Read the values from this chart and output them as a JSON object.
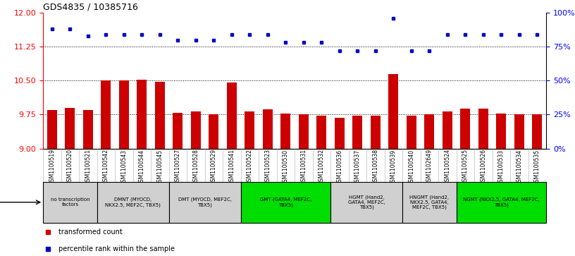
{
  "title": "GDS4835 / 10385716",
  "samples": [
    "GSM1100519",
    "GSM1100520",
    "GSM1100521",
    "GSM1100542",
    "GSM1100543",
    "GSM1100544",
    "GSM1100545",
    "GSM1100527",
    "GSM1100528",
    "GSM1100529",
    "GSM1100541",
    "GSM1100522",
    "GSM1100523",
    "GSM1100530",
    "GSM1100531",
    "GSM1100532",
    "GSM1100536",
    "GSM1100537",
    "GSM1100538",
    "GSM1100539",
    "GSM1100540",
    "GSM1102649",
    "GSM1100524",
    "GSM1100525",
    "GSM1100526",
    "GSM1100533",
    "GSM1100534",
    "GSM1100535"
  ],
  "bar_values": [
    9.85,
    9.9,
    9.85,
    10.5,
    10.5,
    10.52,
    10.47,
    9.79,
    9.82,
    9.75,
    10.46,
    9.82,
    9.86,
    9.78,
    9.75,
    9.73,
    9.68,
    9.72,
    9.72,
    10.65,
    9.73,
    9.75,
    9.82,
    9.88,
    9.88,
    9.78,
    9.75,
    9.76
  ],
  "dot_values": [
    88,
    88,
    83,
    84,
    84,
    84,
    84,
    80,
    80,
    80,
    84,
    84,
    84,
    78,
    78,
    78,
    72,
    72,
    72,
    96,
    72,
    72,
    84,
    84,
    84,
    84,
    84,
    84
  ],
  "ylim_left": [
    9.0,
    12.0
  ],
  "ylim_right": [
    0,
    100
  ],
  "yticks_left": [
    9.0,
    9.75,
    10.5,
    11.25,
    12.0
  ],
  "yticks_right": [
    0,
    25,
    50,
    75,
    100
  ],
  "grid_lines": [
    9.75,
    10.5,
    11.25
  ],
  "bar_color": "#cc0000",
  "dot_color": "#0000cc",
  "bar_bottom": 9.0,
  "protocols": [
    {
      "label": "no transcription\nfactors",
      "start": 0,
      "end": 3,
      "color": "#d0d0d0"
    },
    {
      "label": "DMNT (MYOCD,\nNKX2.5, MEF2C, TBX5)",
      "start": 3,
      "end": 7,
      "color": "#d0d0d0"
    },
    {
      "label": "DMT (MYOCD, MEF2C,\nTBX5)",
      "start": 7,
      "end": 11,
      "color": "#d0d0d0"
    },
    {
      "label": "GMT (GATA4, MEF2C,\nTBX5)",
      "start": 11,
      "end": 16,
      "color": "#00dd00"
    },
    {
      "label": "HGMT (Hand2,\nGATA4, MEF2C,\nTBX5)",
      "start": 16,
      "end": 20,
      "color": "#d0d0d0"
    },
    {
      "label": "HNGMT (Hand2,\nNKX2.5, GATA4,\nMEF2C, TBX5)",
      "start": 20,
      "end": 23,
      "color": "#d0d0d0"
    },
    {
      "label": "NGMT (NKX2.5, GATA4, MEF2C,\nTBX5)",
      "start": 23,
      "end": 28,
      "color": "#00dd00"
    }
  ],
  "fig_width": 8.16,
  "fig_height": 3.63,
  "dpi": 100
}
